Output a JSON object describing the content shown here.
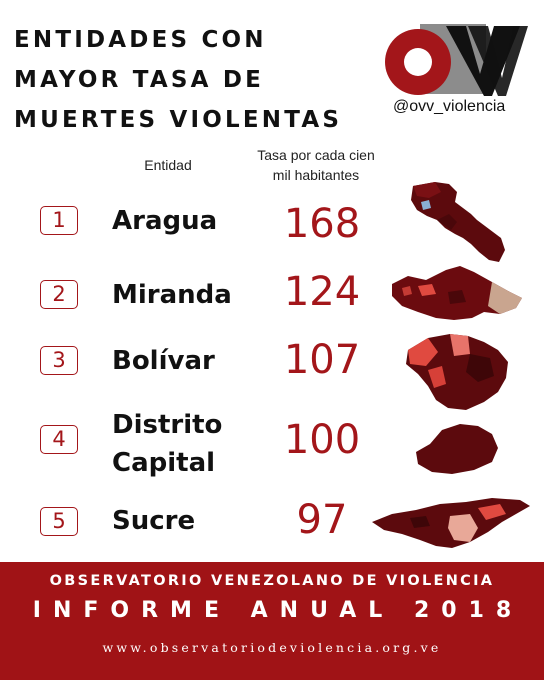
{
  "title": {
    "line1": "Entidades con",
    "line2": "mayor tasa de",
    "line3": "muertes violentas"
  },
  "brand": {
    "logo_text": "OVV",
    "handle": "@ovv_violencia",
    "color": "#a3161a"
  },
  "columns": {
    "entity": "Entidad",
    "rate_line1": "Tasa por cada cien",
    "rate_line2": "mil habitantes"
  },
  "rows": [
    {
      "rank": "1",
      "entity": "Aragua",
      "rate": "168",
      "map": "aragua-map"
    },
    {
      "rank": "2",
      "entity": "Miranda",
      "rate": "124",
      "map": "miranda-map"
    },
    {
      "rank": "3",
      "entity": "Bolívar",
      "rate": "107",
      "map": "bolivar-map"
    },
    {
      "rank": "4",
      "entity_line1": "Distrito",
      "entity_line2": "Capital",
      "rate": "100",
      "map": "distrito-capital-map"
    },
    {
      "rank": "5",
      "entity": "Sucre",
      "rate": "97",
      "map": "sucre-map"
    }
  ],
  "footer": {
    "org": "OBSERVATORIO VENEZOLANO DE VIOLENCIA",
    "report": "INFORME ANUAL 2018",
    "url": "www.observatoriodeviolencia.org.ve",
    "band_color": "#a01316"
  }
}
